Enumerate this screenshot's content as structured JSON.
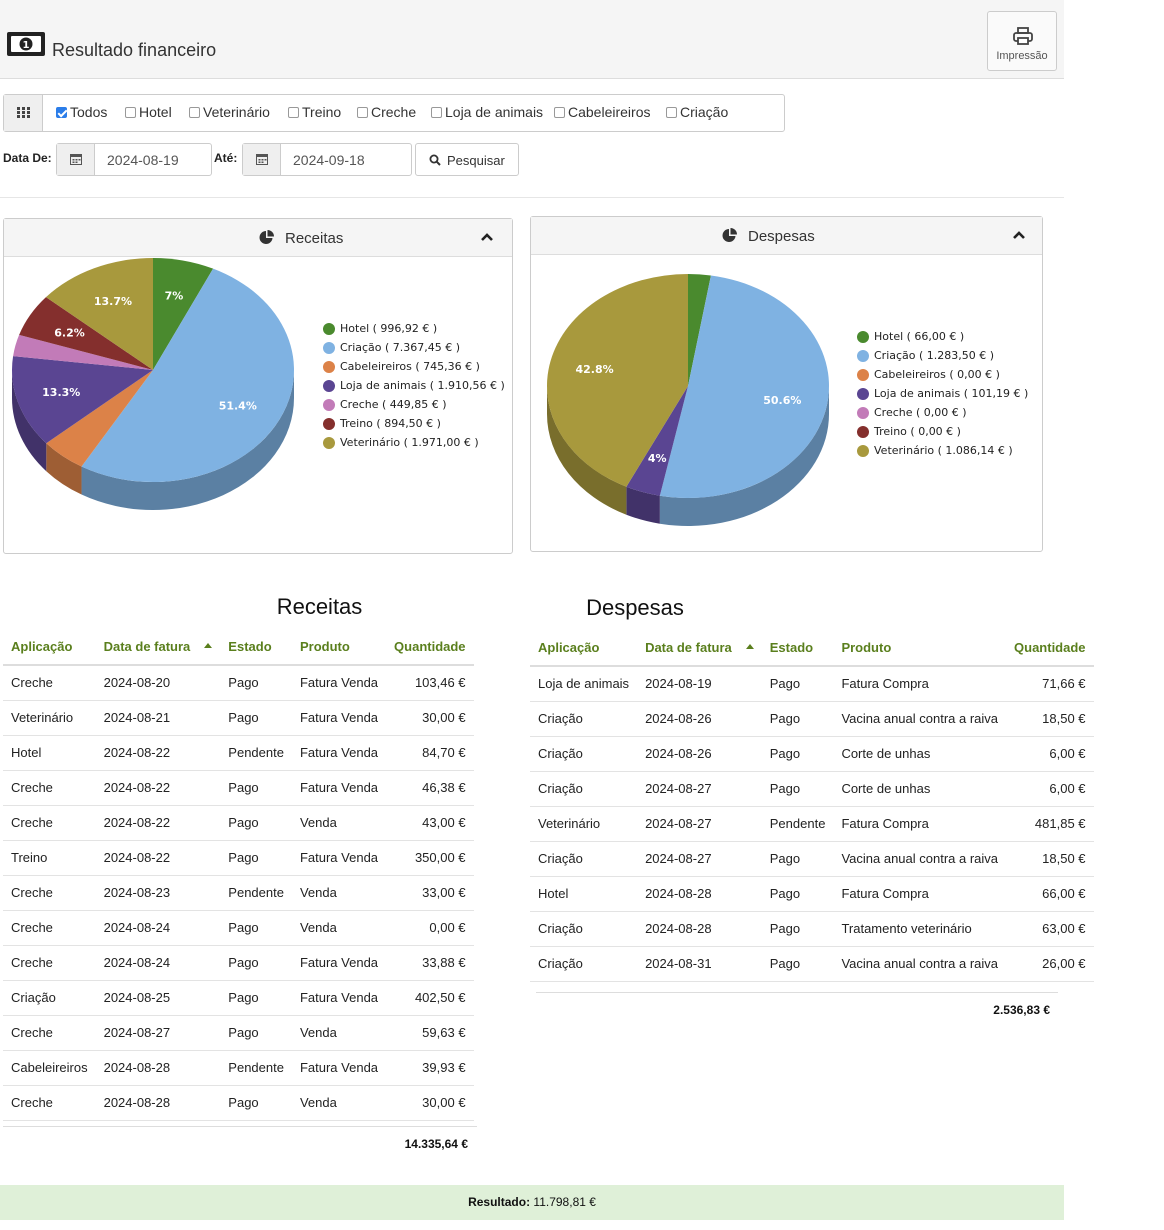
{
  "header": {
    "title": "Resultado financeiro",
    "print_label": "Impressão"
  },
  "filters": [
    {
      "label": "Todos",
      "checked": true
    },
    {
      "label": "Hotel",
      "checked": false
    },
    {
      "label": "Veterinário",
      "checked": false
    },
    {
      "label": "Treino",
      "checked": false
    },
    {
      "label": "Creche",
      "checked": false
    },
    {
      "label": "Loja de animais",
      "checked": false
    },
    {
      "label": "Cabeleireiros",
      "checked": false
    },
    {
      "label": "Criação",
      "checked": false
    }
  ],
  "dates": {
    "from_label": "Data De:",
    "from_value": "2024-08-19",
    "to_label": "Até:",
    "to_value": "2024-09-18",
    "search_label": "Pesquisar"
  },
  "colors": {
    "Hotel": "#4a8a2e",
    "Criação": "#7fb2e2",
    "Cabeleireiros": "#dc8248",
    "Loja de animais": "#5a4592",
    "Creche": "#c27bb8",
    "Treino": "#842f2d",
    "Veterinário": "#a8993d"
  },
  "chart_data": [
    {
      "type": "pie",
      "title": "Receitas",
      "slices": [
        {
          "name": "Hotel",
          "legend": "Hotel ( 996,92 € )",
          "pct": 7.0,
          "label": "7%"
        },
        {
          "name": "Criação",
          "legend": "Criação ( 7.367,45 € )",
          "pct": 51.4,
          "label": "51.4%"
        },
        {
          "name": "Cabeleireiros",
          "legend": "Cabeleireiros ( 745,36 € )",
          "pct": 5.2,
          "label": ""
        },
        {
          "name": "Loja de animais",
          "legend": "Loja de animais ( 1.910,56 € )",
          "pct": 13.3,
          "label": "13.3%"
        },
        {
          "name": "Creche",
          "legend": "Creche ( 449,85 € )",
          "pct": 3.1,
          "label": ""
        },
        {
          "name": "Treino",
          "legend": "Treino ( 894,50 € )",
          "pct": 6.2,
          "label": "6.2%"
        },
        {
          "name": "Veterinário",
          "legend": "Veterinário ( 1.971,00 € )",
          "pct": 13.7,
          "label": "13.7%"
        }
      ]
    },
    {
      "type": "pie",
      "title": "Despesas",
      "slices": [
        {
          "name": "Hotel",
          "legend": "Hotel ( 66,00 € )",
          "pct": 2.6,
          "label": ""
        },
        {
          "name": "Criação",
          "legend": "Criação ( 1.283,50 € )",
          "pct": 50.6,
          "label": "50.6%"
        },
        {
          "name": "Cabeleireiros",
          "legend": "Cabeleireiros ( 0,00 € )",
          "pct": 0,
          "label": ""
        },
        {
          "name": "Loja de animais",
          "legend": "Loja de animais ( 101,19 € )",
          "pct": 4.0,
          "label": "4%"
        },
        {
          "name": "Creche",
          "legend": "Creche ( 0,00 € )",
          "pct": 0,
          "label": ""
        },
        {
          "name": "Treino",
          "legend": "Treino ( 0,00 € )",
          "pct": 0,
          "label": ""
        },
        {
          "name": "Veterinário",
          "legend": "Veterinário ( 1.086,14 € )",
          "pct": 42.8,
          "label": "42.8%"
        }
      ]
    }
  ],
  "columns": [
    "Aplicação",
    "Data de fatura",
    "Estado",
    "Produto",
    "Quantidade"
  ],
  "receitas": {
    "title": "Receitas",
    "rows": [
      [
        "Creche",
        "2024-08-20",
        "Pago",
        "Fatura Venda",
        "103,46 €"
      ],
      [
        "Veterinário",
        "2024-08-21",
        "Pago",
        "Fatura Venda",
        "30,00 €"
      ],
      [
        "Hotel",
        "2024-08-22",
        "Pendente",
        "Fatura Venda",
        "84,70 €"
      ],
      [
        "Creche",
        "2024-08-22",
        "Pago",
        "Fatura Venda",
        "46,38 €"
      ],
      [
        "Creche",
        "2024-08-22",
        "Pago",
        "Venda",
        "43,00 €"
      ],
      [
        "Treino",
        "2024-08-22",
        "Pago",
        "Fatura Venda",
        "350,00 €"
      ],
      [
        "Creche",
        "2024-08-23",
        "Pendente",
        "Venda",
        "33,00 €"
      ],
      [
        "Creche",
        "2024-08-24",
        "Pago",
        "Venda",
        "0,00 €"
      ],
      [
        "Creche",
        "2024-08-24",
        "Pago",
        "Fatura Venda",
        "33,88 €"
      ],
      [
        "Criação",
        "2024-08-25",
        "Pago",
        "Fatura Venda",
        "402,50 €"
      ],
      [
        "Creche",
        "2024-08-27",
        "Pago",
        "Venda",
        "59,63 €"
      ],
      [
        "Cabeleireiros",
        "2024-08-28",
        "Pendente",
        "Fatura Venda",
        "39,93 €"
      ],
      [
        "Creche",
        "2024-08-28",
        "Pago",
        "Venda",
        "30,00 €"
      ]
    ],
    "total": "14.335,64 €"
  },
  "despesas": {
    "title": "Despesas",
    "rows": [
      [
        "Loja de animais",
        "2024-08-19",
        "Pago",
        "Fatura Compra",
        "71,66 €"
      ],
      [
        "Criação",
        "2024-08-26",
        "Pago",
        "Vacina anual contra a raiva",
        "18,50 €"
      ],
      [
        "Criação",
        "2024-08-26",
        "Pago",
        "Corte de unhas",
        "6,00 €"
      ],
      [
        "Criação",
        "2024-08-27",
        "Pago",
        "Corte de unhas",
        "6,00 €"
      ],
      [
        "Veterinário",
        "2024-08-27",
        "Pendente",
        "Fatura Compra",
        "481,85 €"
      ],
      [
        "Criação",
        "2024-08-27",
        "Pago",
        "Vacina anual contra a raiva",
        "18,50 €"
      ],
      [
        "Hotel",
        "2024-08-28",
        "Pago",
        "Fatura Compra",
        "66,00 €"
      ],
      [
        "Criação",
        "2024-08-28",
        "Pago",
        "Tratamento veterinário",
        "63,00 €"
      ],
      [
        "Criação",
        "2024-08-31",
        "Pago",
        "Vacina anual contra a raiva",
        "26,00 €"
      ]
    ],
    "total": "2.536,83 €"
  },
  "result": {
    "label": "Resultado:",
    "value": "11.798,81 €"
  }
}
